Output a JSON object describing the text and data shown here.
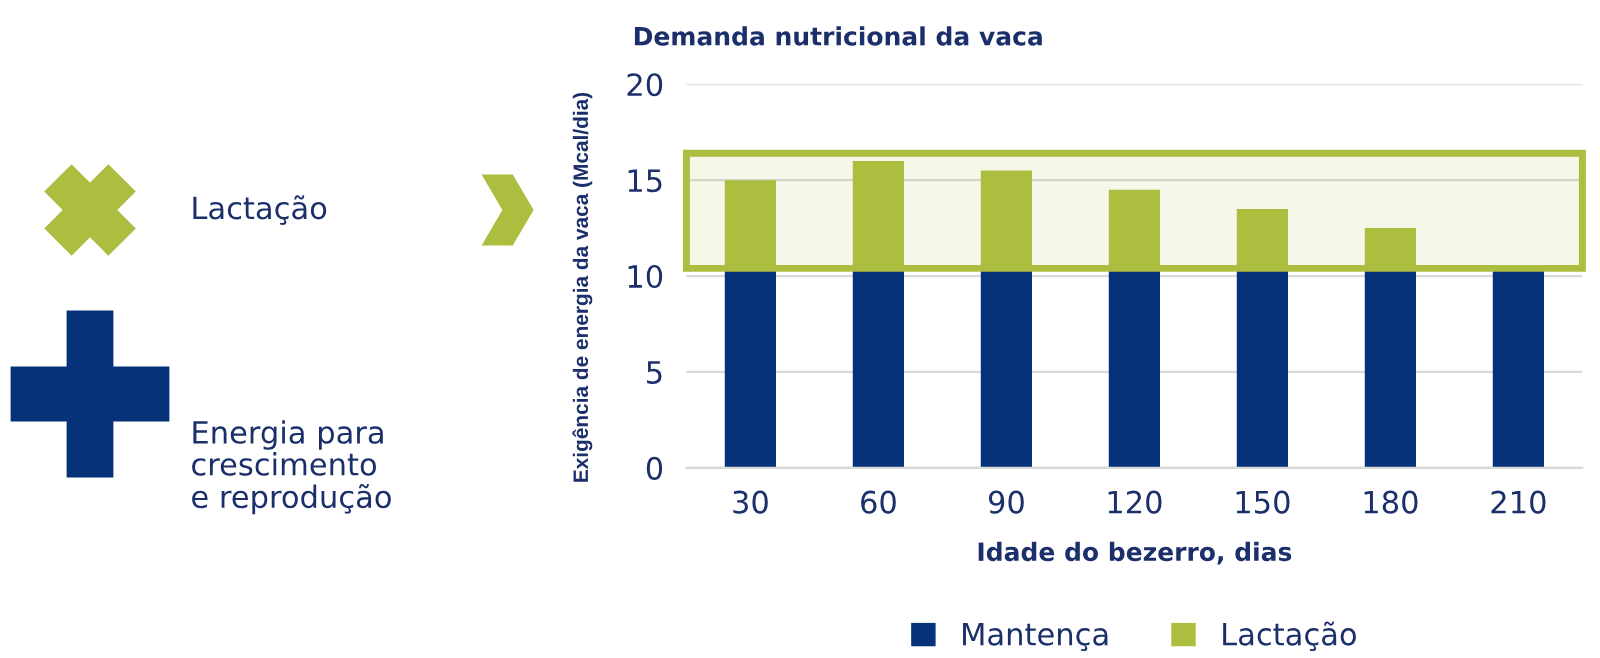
{
  "chart_data": {
    "type": "bar",
    "title": "Demanda nutricional da vaca",
    "xlabel": "Idade do bezerro, dias",
    "ylabel": "Exigência de energia da vaca (Mcal/dia)",
    "categories": [
      "30",
      "60",
      "90",
      "120",
      "150",
      "180",
      "210"
    ],
    "stacked": true,
    "series": [
      {
        "name": "Mantença",
        "color": "#06327a",
        "values": [
          10.5,
          10.5,
          10.5,
          10.5,
          10.5,
          10.5,
          10.5
        ]
      },
      {
        "name": "Lactação",
        "color": "#adbd3f",
        "values": [
          4.5,
          5.5,
          5,
          4,
          3,
          2,
          0
        ]
      }
    ],
    "ylim": [
      0,
      20
    ],
    "yticks": [
      0,
      5,
      10,
      15,
      20
    ],
    "grid": "y",
    "legend": "bottom",
    "bands": [
      {
        "axis": "y",
        "from": 10.4,
        "to": 16.4,
        "color": "#adbd3f"
      }
    ],
    "annotations": [
      "Lactação",
      "Energia para\ncrescimento\ne reprodução"
    ]
  }
}
